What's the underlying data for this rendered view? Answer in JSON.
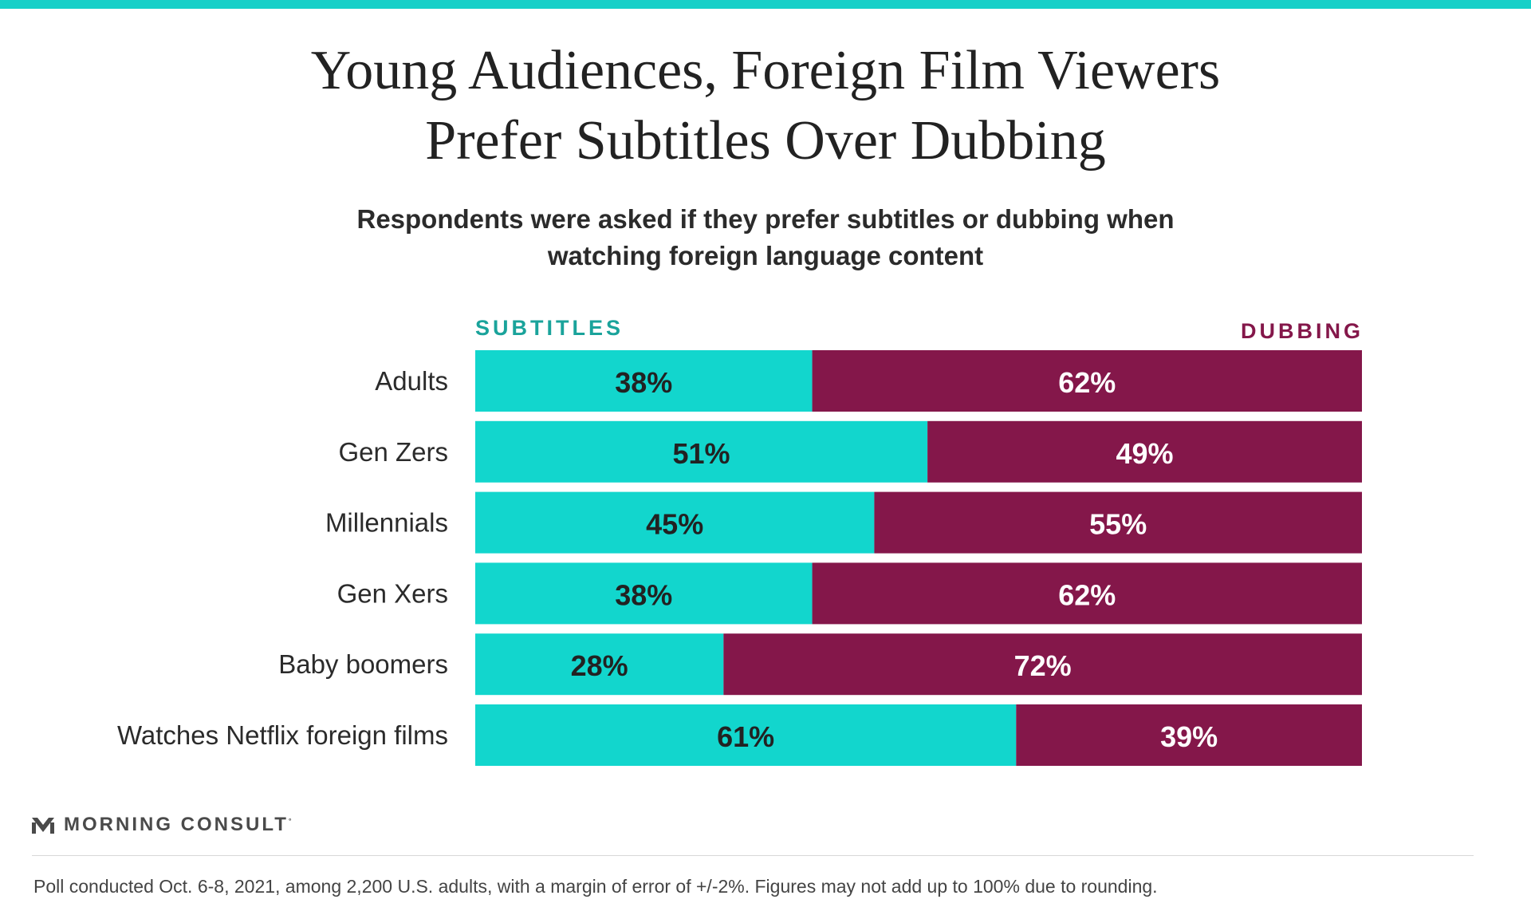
{
  "colors": {
    "accent_top": "#16d0c8",
    "subtitles": "#12d6cd",
    "dubbing": "#84174a",
    "subtitles_label_text": "#1aa39b",
    "dubbing_label_text": "#84174a",
    "value_on_subtitles": "#222222",
    "value_on_dubbing": "#ffffff",
    "category_text": "#2b2b2b"
  },
  "header": {
    "title_line1": "Young Audiences, Foreign Film Viewers",
    "title_line2": "Prefer Subtitles Over Dubbing",
    "subtitle_line1": "Respondents were asked if they prefer subtitles or dubbing when",
    "subtitle_line2": "watching foreign language content"
  },
  "chart_data": {
    "type": "bar",
    "orientation": "horizontal",
    "stacked": true,
    "percent": true,
    "categories": [
      "Adults",
      "Gen Zers",
      "Millennials",
      "Gen Xers",
      "Baby boomers",
      "Watches Netflix foreign films"
    ],
    "series": [
      {
        "name": "SUBTITLES",
        "values": [
          38,
          51,
          45,
          38,
          28,
          61
        ]
      },
      {
        "name": "DUBBING",
        "values": [
          62,
          49,
          55,
          62,
          72,
          39
        ]
      }
    ],
    "value_labels": [
      [
        "38%",
        "51%",
        "45%",
        "38%",
        "28%",
        "61%"
      ],
      [
        "62%",
        "49%",
        "55%",
        "62%",
        "72%",
        "39%"
      ]
    ],
    "xlim": [
      0,
      100
    ],
    "grid": false,
    "legend_position": "top"
  },
  "branding": {
    "logo_icon": "morning-consult-m-icon",
    "logo_text": "MORNING CONSULT",
    "logo_mark": "°"
  },
  "footnote": "Poll conducted Oct. 6-8, 2021, among 2,200 U.S. adults, with a margin of error of +/-2%. Figures may not add up to 100% due to rounding."
}
